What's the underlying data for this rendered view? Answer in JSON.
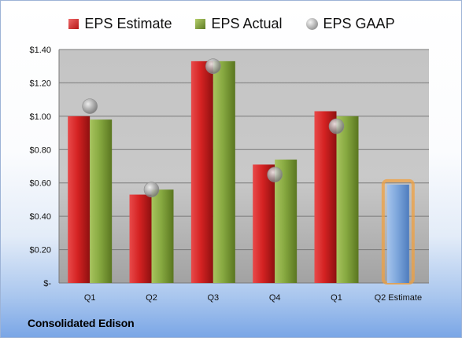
{
  "legend": {
    "estimate": "EPS Estimate",
    "actual": "EPS Actual",
    "gaap": "EPS GAAP"
  },
  "company": "Consolidated Edison",
  "colors": {
    "estimate": "#d42222",
    "actual": "#8aac44",
    "gaap": "#b0b0b0",
    "forecast": "#7ea7dc",
    "forecast_glow": "#f0a040",
    "plot_background": "#c6c6c6"
  },
  "chart_data": {
    "type": "bar",
    "categories": [
      "Q1",
      "Q2",
      "Q3",
      "Q4",
      "Q1",
      "Q2 Estimate"
    ],
    "series": [
      {
        "name": "EPS Estimate",
        "values": [
          1.0,
          0.53,
          1.33,
          0.71,
          1.03,
          null
        ]
      },
      {
        "name": "EPS Actual",
        "values": [
          0.98,
          0.56,
          1.33,
          0.74,
          1.0,
          null
        ]
      },
      {
        "name": "EPS GAAP",
        "values": [
          1.06,
          0.56,
          1.3,
          0.65,
          0.94,
          null
        ]
      },
      {
        "name": "",
        "values": [
          null,
          null,
          null,
          null,
          null,
          0.59
        ]
      }
    ],
    "y_tick_labels": [
      "$-",
      "$0.20",
      "$0.40",
      "$0.60",
      "$0.80",
      "$1.00",
      "$1.20",
      "$1.40"
    ],
    "y_ticks": [
      0,
      0.2,
      0.4,
      0.6,
      0.8,
      1.0,
      1.2,
      1.4
    ],
    "ylim": [
      0,
      1.4
    ],
    "grid": true,
    "legend_position": "top"
  }
}
